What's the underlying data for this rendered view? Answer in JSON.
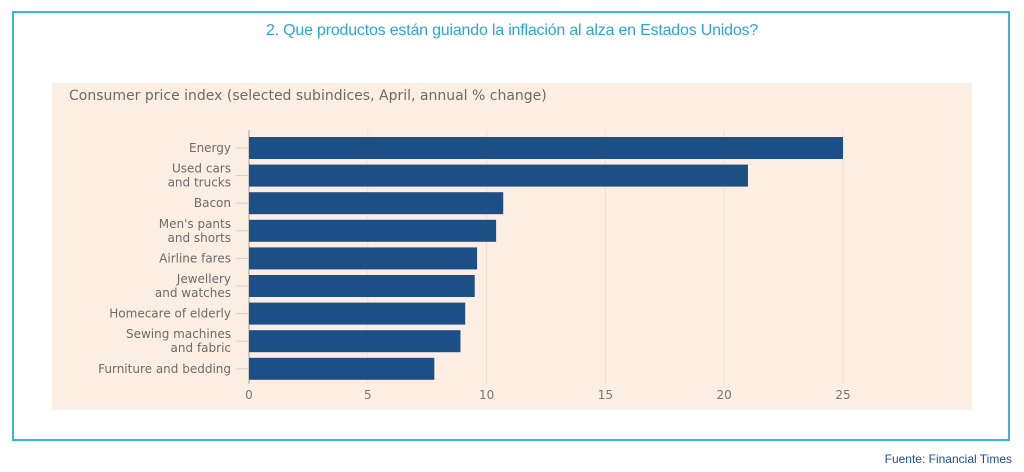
{
  "header": {
    "title": "2. Que productos están guiando la inflación al alza en Estados Unidos?"
  },
  "footer": {
    "source": "Fuente: Financial Times"
  },
  "colors": {
    "frame": "#3ab6dc",
    "title": "#2aa6d2",
    "chart_background": "#fdeee3",
    "bar": "#1c4f86",
    "source_text": "#1f4f8f"
  },
  "chart_data": {
    "type": "bar",
    "orientation": "horizontal",
    "title": "Consumer price index (selected subindices, April, annual % change)",
    "xlabel": "",
    "ylabel": "",
    "categories": [
      [
        "Energy"
      ],
      [
        "Used cars",
        "and trucks"
      ],
      [
        "Bacon"
      ],
      [
        "Men's pants",
        "and shorts"
      ],
      [
        "Airline fares"
      ],
      [
        "Jewellery",
        "and watches"
      ],
      [
        "Homecare of elderly"
      ],
      [
        "Sewing machines",
        "and fabric"
      ],
      [
        "Furniture and bedding"
      ]
    ],
    "values": [
      25.0,
      21.0,
      10.7,
      10.4,
      9.6,
      9.5,
      9.1,
      8.9,
      7.8
    ],
    "xlim": [
      0,
      25
    ],
    "xticks": [
      "0",
      "5",
      "10",
      "15",
      "20",
      "25"
    ],
    "xtick_values": [
      0,
      5,
      10,
      15,
      20,
      25
    ],
    "grid": true,
    "legend": "none"
  }
}
